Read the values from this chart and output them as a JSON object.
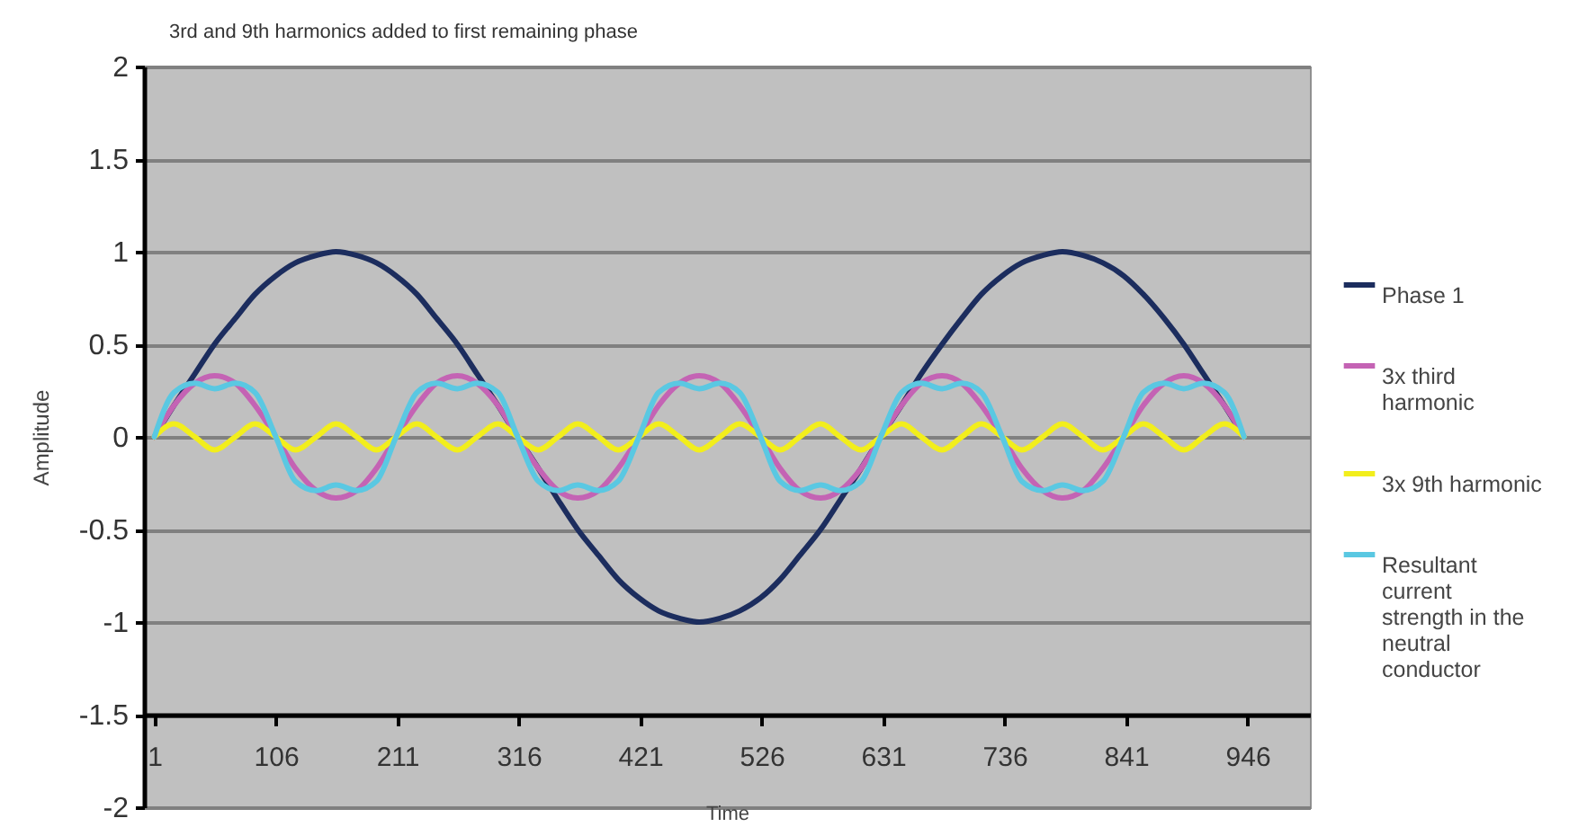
{
  "chart_data": {
    "type": "line",
    "title": "3rd and 9th harmonics added to first remaining phase",
    "xlabel": "Time",
    "ylabel": "Amplitude",
    "x": [
      1,
      18,
      36,
      53,
      71,
      88,
      106,
      123,
      141,
      158,
      176,
      193,
      210,
      228,
      245,
      263,
      280,
      298,
      315,
      333,
      350,
      367,
      385,
      402,
      420,
      437,
      455,
      472,
      490,
      507,
      525,
      542,
      559,
      577,
      594,
      612,
      629,
      647,
      664,
      682,
      699,
      716,
      734,
      751,
      769,
      786,
      804,
      821,
      839,
      856,
      874,
      891,
      908,
      926,
      943
    ],
    "series": [
      {
        "name": "Phase 1",
        "color": "#1c2d5e",
        "values": [
          0,
          0.17,
          0.34,
          0.5,
          0.64,
          0.77,
          0.87,
          0.94,
          0.98,
          1,
          0.98,
          0.94,
          0.87,
          0.77,
          0.64,
          0.5,
          0.34,
          0.17,
          0,
          -0.17,
          -0.34,
          -0.5,
          -0.64,
          -0.77,
          -0.87,
          -0.94,
          -0.98,
          -1,
          -0.98,
          -0.94,
          -0.87,
          -0.77,
          -0.64,
          -0.5,
          -0.34,
          -0.17,
          0,
          0.17,
          0.34,
          0.5,
          0.64,
          0.77,
          0.87,
          0.94,
          0.98,
          1,
          0.98,
          0.94,
          0.87,
          0.77,
          0.64,
          0.5,
          0.34,
          0.17,
          0
        ]
      },
      {
        "name": "3x third harmonic",
        "color": "#c463b4",
        "values": [
          0,
          0.17,
          0.29,
          0.33,
          0.29,
          0.17,
          0,
          -0.17,
          -0.29,
          -0.33,
          -0.29,
          -0.17,
          0,
          0.17,
          0.29,
          0.33,
          0.29,
          0.17,
          0,
          -0.17,
          -0.29,
          -0.33,
          -0.29,
          -0.17,
          0,
          0.17,
          0.29,
          0.33,
          0.29,
          0.17,
          0,
          -0.17,
          -0.29,
          -0.33,
          -0.29,
          -0.17,
          0,
          0.17,
          0.29,
          0.33,
          0.29,
          0.17,
          0,
          -0.17,
          -0.29,
          -0.33,
          -0.29,
          -0.17,
          0,
          0.17,
          0.29,
          0.33,
          0.29,
          0.17,
          0
        ]
      },
      {
        "name": "3x 9th harmonic",
        "color": "#f2ee1c",
        "values": [
          0,
          0.07,
          0,
          -0.07,
          0,
          0.07,
          0,
          -0.07,
          0,
          0.07,
          0,
          -0.07,
          0,
          0.07,
          0,
          -0.07,
          0,
          0.07,
          0,
          -0.07,
          0,
          0.07,
          0,
          -0.07,
          0,
          0.07,
          0,
          -0.07,
          0,
          0.07,
          0,
          -0.07,
          0,
          0.07,
          0,
          -0.07,
          0,
          0.07,
          0,
          -0.07,
          0,
          0.07,
          0,
          -0.07,
          0,
          0.07,
          0,
          -0.07,
          0,
          0.07,
          0,
          -0.07,
          0,
          0.07,
          0
        ]
      },
      {
        "name": "Resultant current strength in the neutral conductor",
        "color": "#5ac8e2",
        "values": [
          0,
          0.24,
          0.29,
          0.26,
          0.29,
          0.24,
          0,
          -0.24,
          -0.29,
          -0.26,
          -0.29,
          -0.24,
          0,
          0.24,
          0.29,
          0.26,
          0.29,
          0.24,
          0,
          -0.24,
          -0.29,
          -0.26,
          -0.29,
          -0.24,
          0,
          0.24,
          0.29,
          0.26,
          0.29,
          0.24,
          0,
          -0.24,
          -0.29,
          -0.26,
          -0.29,
          -0.24,
          0,
          0.24,
          0.29,
          0.26,
          0.29,
          0.24,
          0,
          -0.24,
          -0.29,
          -0.26,
          -0.29,
          -0.24,
          0,
          0.24,
          0.29,
          0.26,
          0.29,
          0.24,
          0
        ]
      }
    ],
    "ylim": [
      -2,
      2
    ],
    "yticks": [
      -2,
      -1.5,
      -1,
      -0.5,
      0,
      0.5,
      1,
      1.5,
      2
    ],
    "xlim": [
      -8,
      1000
    ],
    "xticks": [
      1,
      106,
      211,
      316,
      421,
      526,
      631,
      736,
      841,
      946
    ],
    "grid": "y",
    "legend": "right",
    "line_style": "solid"
  }
}
